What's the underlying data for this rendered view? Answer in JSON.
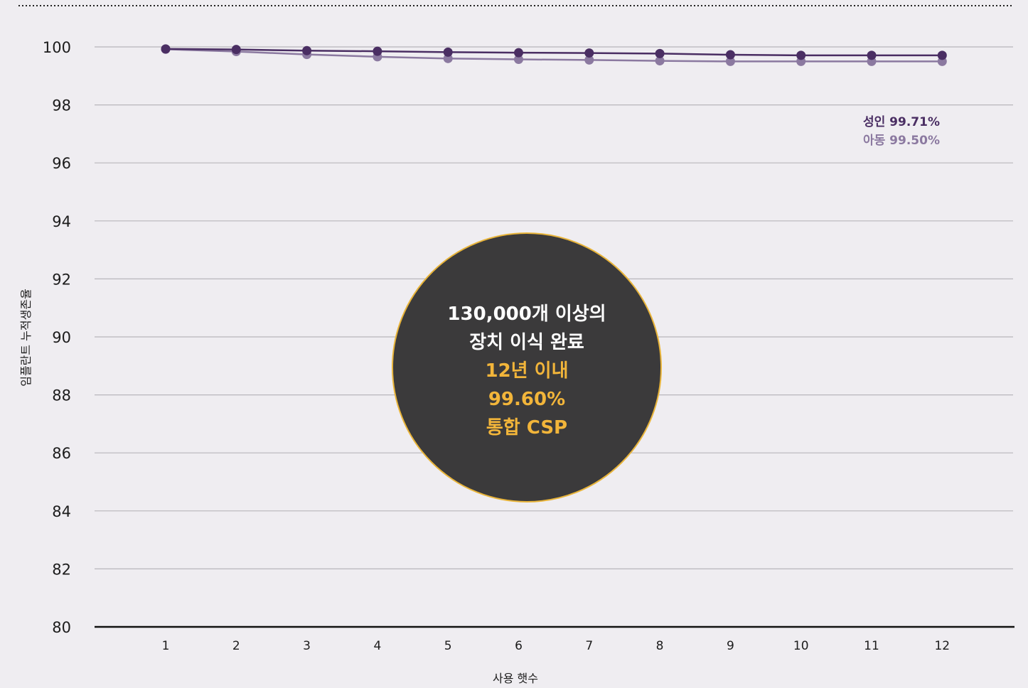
{
  "colors": {
    "background": "#efedf1",
    "adult_series": "#4a2e63",
    "child_series": "#8b79a0",
    "bubble_fill": "#3b3a3b",
    "bubble_border": "#e8b43a",
    "bubble_text_white": "#ffffff",
    "bubble_text_accent": "#f2b53a",
    "gridline": "#b8b6bb",
    "axis": "#111111"
  },
  "chart_data": {
    "type": "line",
    "title": "",
    "xlabel": "사용 햇수",
    "ylabel": "임플란트 누적생존율",
    "x": [
      1,
      2,
      3,
      4,
      5,
      6,
      7,
      8,
      9,
      10,
      11,
      12
    ],
    "xlim": [
      0,
      13
    ],
    "ylim": [
      80,
      100
    ],
    "yticks": [
      80,
      82,
      84,
      86,
      88,
      90,
      92,
      94,
      96,
      98,
      100
    ],
    "grid": true,
    "series": [
      {
        "name": "성인",
        "end_label": "99.71%",
        "color": "#4a2e63",
        "values": [
          99.93,
          99.91,
          99.87,
          99.85,
          99.82,
          99.8,
          99.79,
          99.77,
          99.73,
          99.71,
          99.71,
          99.71
        ]
      },
      {
        "name": "아동",
        "end_label": "99.50%",
        "color": "#8b79a0",
        "values": [
          99.92,
          99.84,
          99.74,
          99.66,
          99.6,
          99.57,
          99.55,
          99.52,
          99.5,
          99.5,
          99.5,
          99.5
        ]
      }
    ],
    "annotation": {
      "lines": [
        {
          "text": "130,000개 이상의",
          "accent": false
        },
        {
          "text": "장치 이식 완료",
          "accent": false
        },
        {
          "text": "12년 이내",
          "accent": true
        },
        {
          "text": "99.60%",
          "accent": true
        },
        {
          "text": "통합 CSP",
          "accent": true
        }
      ]
    }
  }
}
